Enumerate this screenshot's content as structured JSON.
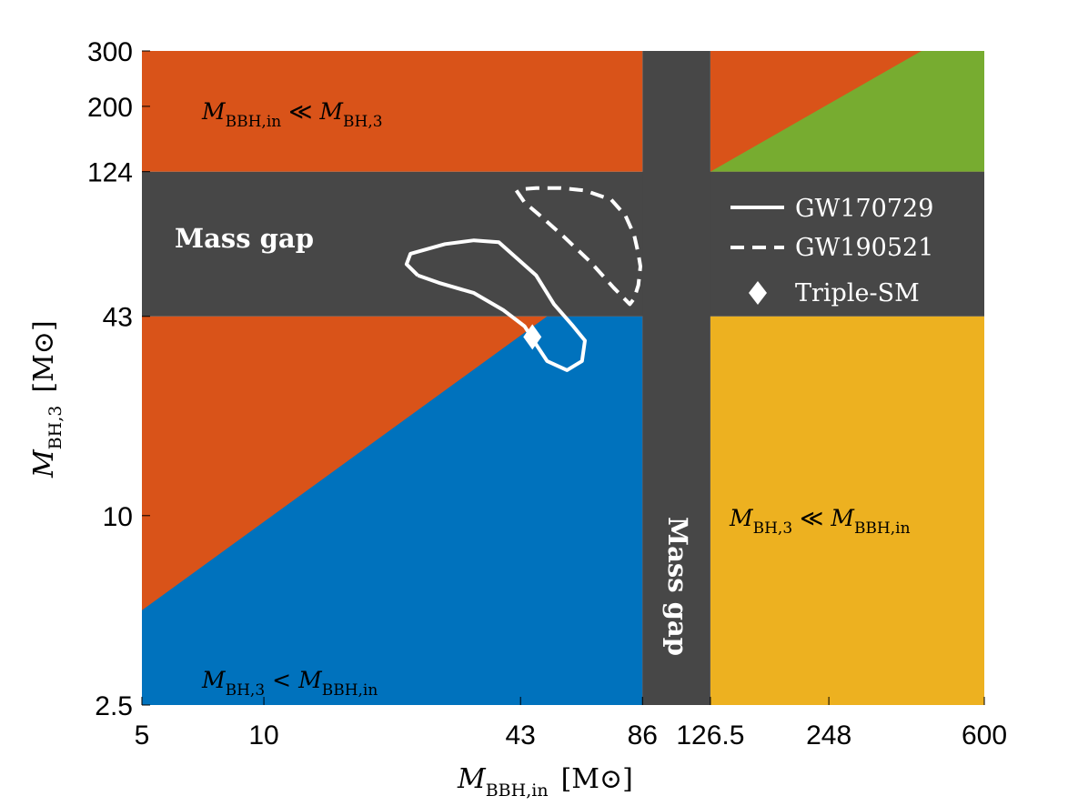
{
  "chart_data": {
    "type": "area",
    "x_scale": "log",
    "y_scale": "log",
    "xlim": [
      5,
      600
    ],
    "ylim": [
      2.5,
      300
    ],
    "xlabel_main": "M",
    "xlabel_sub": "BBH,in",
    "xlabel_unit": "[M⊙]",
    "ylabel_main": "M",
    "ylabel_sub": "BH,3",
    "ylabel_unit": "[M⊙]",
    "x_ticks": [
      {
        "value": 5,
        "label": "5"
      },
      {
        "value": 10,
        "label": "10"
      },
      {
        "value": 43,
        "label": "43"
      },
      {
        "value": 86,
        "label": "86"
      },
      {
        "value": 126.5,
        "label": "126.5"
      },
      {
        "value": 248,
        "label": "248"
      },
      {
        "value": 600,
        "label": "600"
      }
    ],
    "y_ticks": [
      {
        "value": 2.5,
        "label": "2.5"
      },
      {
        "value": 10,
        "label": "10"
      },
      {
        "value": 43,
        "label": "43"
      },
      {
        "value": 124,
        "label": "124"
      },
      {
        "value": 200,
        "label": "200"
      },
      {
        "value": 300,
        "label": "300"
      }
    ],
    "colors": {
      "mass_gap": "#474747",
      "orange": "#D95319",
      "blue": "#0072BD",
      "yellow": "#EDB120",
      "green": "#77AC30",
      "white": "#FFFFFF"
    },
    "mass_gap_x": [
      86,
      126.5
    ],
    "mass_gap_y": [
      43,
      124
    ],
    "green_region_boundary": [
      [
        126.5,
        124
      ],
      [
        420,
        300
      ]
    ],
    "orange_blue_boundary": [
      [
        5,
        5
      ],
      [
        50,
        43
      ]
    ],
    "region_labels": {
      "top_left": {
        "main": "M",
        "sub": "BBH,in",
        "relation": "≪",
        "main2": "M",
        "sub2": "BH,3"
      },
      "bottom_left": {
        "main": "M",
        "sub": "BH,3",
        "relation": "<",
        "main2": "M",
        "sub2": "BBH,in"
      },
      "right": {
        "main": "M",
        "sub": "BH,3",
        "relation": "≪",
        "main2": "M",
        "sub2": "BBH,in"
      }
    },
    "mass_gap_labels": {
      "horizontal": "Mass gap",
      "vertical": "Mass gap"
    },
    "series": [
      {
        "name": "GW170729",
        "style": "solid",
        "points": [
          [
            24,
            58
          ],
          [
            22.5,
            63
          ],
          [
            23,
            68
          ],
          [
            28,
            73
          ],
          [
            33,
            75
          ],
          [
            38,
            74
          ],
          [
            42,
            66
          ],
          [
            47,
            58
          ],
          [
            52,
            47
          ],
          [
            58,
            40
          ],
          [
            62,
            36
          ],
          [
            61,
            31
          ],
          [
            56,
            29
          ],
          [
            50,
            31
          ],
          [
            47,
            35
          ],
          [
            44,
            40
          ],
          [
            39,
            45
          ],
          [
            33,
            51
          ],
          [
            27,
            55
          ],
          [
            24,
            58
          ]
        ]
      },
      {
        "name": "GW190521",
        "style": "dashed",
        "points": [
          [
            42,
            108
          ],
          [
            44,
            99
          ],
          [
            48,
            90
          ],
          [
            55,
            77
          ],
          [
            64,
            64
          ],
          [
            73,
            53
          ],
          [
            80,
            47
          ],
          [
            82,
            49
          ],
          [
            84,
            54
          ],
          [
            85,
            62
          ],
          [
            84,
            68
          ],
          [
            82,
            78
          ],
          [
            78,
            90
          ],
          [
            72,
            101
          ],
          [
            62,
            108
          ],
          [
            54,
            110
          ],
          [
            47,
            110
          ],
          [
            43,
            109
          ]
        ]
      },
      {
        "name": "Triple-SM",
        "style": "marker",
        "points": [
          [
            46,
            37
          ]
        ]
      }
    ],
    "legend_position": "top-right inside"
  }
}
